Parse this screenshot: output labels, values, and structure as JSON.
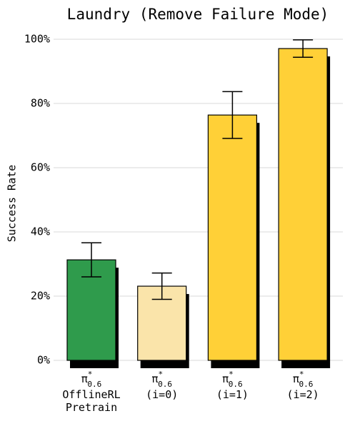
{
  "chart_data": {
    "type": "bar",
    "title": "Laundry (Remove Failure Mode)",
    "y_label": "Success Rate",
    "categories": [
      {
        "symbol": "π",
        "sup": "*",
        "sub": "0.6",
        "lines": [
          "OfflineRL",
          "Pretrain"
        ]
      },
      {
        "symbol": "π",
        "sup": "*",
        "sub": "0.6",
        "lines": [
          "(i=0)"
        ]
      },
      {
        "symbol": "π",
        "sup": "*",
        "sub": "0.6",
        "lines": [
          "(i=1)"
        ]
      },
      {
        "symbol": "π",
        "sup": "*",
        "sub": "0.6",
        "lines": [
          "(i=2)"
        ]
      }
    ],
    "values": [
      31.3,
      23.1,
      76.4,
      97.1
    ],
    "errors": [
      5.3,
      4.1,
      7.3,
      2.7
    ],
    "colors": [
      "#2f9b4c",
      "#fae4aa",
      "#ffd037",
      "#ffd037"
    ],
    "ylim": [
      0,
      100
    ],
    "yticks": [
      {
        "value": 0,
        "label": "0%"
      },
      {
        "value": 20,
        "label": "20%"
      },
      {
        "value": 40,
        "label": "40%"
      },
      {
        "value": 60,
        "label": "60%"
      },
      {
        "value": 80,
        "label": "80%"
      },
      {
        "value": 100,
        "label": "100%"
      }
    ],
    "grid": true
  }
}
